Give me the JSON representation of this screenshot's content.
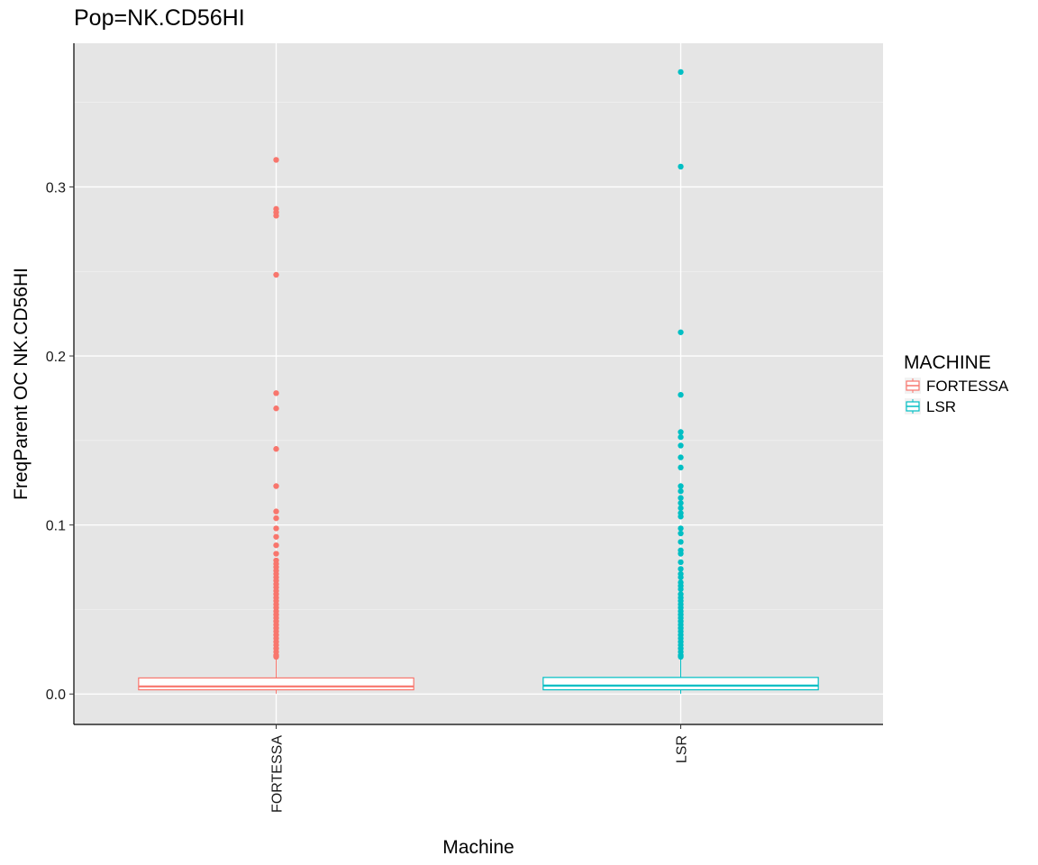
{
  "chart_data": {
    "type": "box",
    "title": "Pop=NK.CD56HI",
    "xlabel": "Machine",
    "ylabel": "FreqParent OC  NK.CD56HI",
    "categories": [
      "FORTESSA",
      "LSR"
    ],
    "ylim": [
      -0.018,
      0.385
    ],
    "yticks": [
      0.0,
      0.1,
      0.2,
      0.3
    ],
    "ytick_labels": [
      "0.0",
      "0.1",
      "0.2",
      "0.3"
    ],
    "grid": true,
    "legend": {
      "title": "MACHINE",
      "position": "right",
      "entries": [
        {
          "label": "FORTESSA",
          "color": "#F8766D"
        },
        {
          "label": "LSR",
          "color": "#00BFC4"
        }
      ]
    },
    "series": [
      {
        "category": "FORTESSA",
        "color": "#F8766D",
        "whisker_low": 0.0002,
        "q1": 0.0025,
        "median": 0.0045,
        "q3": 0.0095,
        "whisker_high": 0.021,
        "outliers": [
          0.316,
          0.287,
          0.285,
          0.283,
          0.248,
          0.178,
          0.169,
          0.145,
          0.123,
          0.108,
          0.104,
          0.098,
          0.093,
          0.088,
          0.083,
          0.079,
          0.077,
          0.075,
          0.073,
          0.071,
          0.069,
          0.067,
          0.065,
          0.063,
          0.061,
          0.059,
          0.057,
          0.055,
          0.053,
          0.051,
          0.049,
          0.047,
          0.045,
          0.043,
          0.041,
          0.039,
          0.037,
          0.035,
          0.033,
          0.031,
          0.029,
          0.027,
          0.025,
          0.023,
          0.022
        ]
      },
      {
        "category": "LSR",
        "color": "#00BFC4",
        "whisker_low": 0.0002,
        "q1": 0.0025,
        "median": 0.005,
        "q3": 0.0098,
        "whisker_high": 0.021,
        "outliers": [
          0.368,
          0.312,
          0.214,
          0.177,
          0.155,
          0.152,
          0.147,
          0.14,
          0.134,
          0.123,
          0.12,
          0.116,
          0.113,
          0.11,
          0.107,
          0.105,
          0.098,
          0.095,
          0.09,
          0.085,
          0.083,
          0.078,
          0.074,
          0.071,
          0.069,
          0.066,
          0.064,
          0.062,
          0.059,
          0.057,
          0.055,
          0.053,
          0.051,
          0.049,
          0.047,
          0.045,
          0.043,
          0.041,
          0.039,
          0.037,
          0.035,
          0.033,
          0.031,
          0.029,
          0.027,
          0.025,
          0.023,
          0.022
        ]
      }
    ]
  }
}
